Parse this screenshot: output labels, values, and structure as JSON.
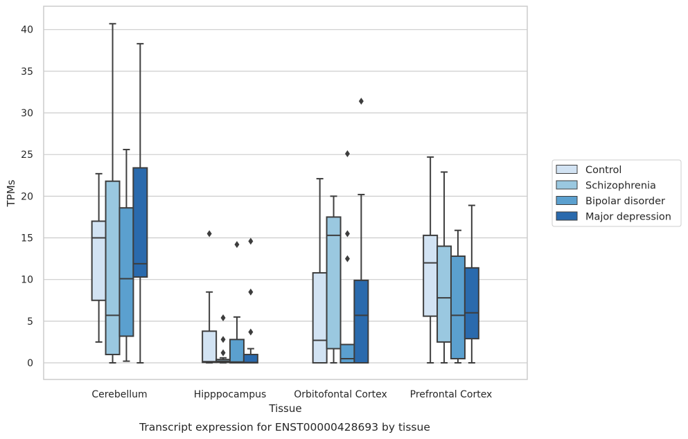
{
  "chart_data": {
    "type": "boxplot",
    "title": "",
    "caption": "Transcript expression for ENST00000428693 by tissue",
    "xlabel": "Tissue",
    "ylabel": "TPMs",
    "ylim": [
      -1.9,
      42.7
    ],
    "yticks": [
      0,
      5,
      10,
      15,
      20,
      25,
      30,
      35,
      40
    ],
    "grid": "horizontal",
    "legend_position": "right",
    "categories": [
      "Cerebellum",
      "Hipppocampus",
      "Orbitofontal Cortex",
      "Prefrontal Cortex"
    ],
    "series": [
      {
        "name": "Control",
        "color": "#d2e3f3",
        "boxes": [
          {
            "whislo": 2.5,
            "q1": 7.5,
            "med": 15.0,
            "q3": 17.0,
            "whishi": 22.7,
            "fliers": []
          },
          {
            "whislo": 0.0,
            "q1": 0.05,
            "med": 0.15,
            "q3": 3.8,
            "whishi": 8.5,
            "fliers": [
              15.5
            ]
          },
          {
            "whislo": 0.0,
            "q1": 0.0,
            "med": 2.7,
            "q3": 10.8,
            "whishi": 22.1,
            "fliers": []
          },
          {
            "whislo": 0.0,
            "q1": 5.6,
            "med": 12.0,
            "q3": 15.3,
            "whishi": 24.7,
            "fliers": []
          }
        ]
      },
      {
        "name": "Schizophrenia",
        "color": "#9ac8e0",
        "boxes": [
          {
            "whislo": 0.0,
            "q1": 1.0,
            "med": 5.7,
            "q3": 21.8,
            "whishi": 40.7,
            "fliers": []
          },
          {
            "whislo": 0.0,
            "q1": 0.05,
            "med": 0.2,
            "q3": 0.4,
            "whishi": 0.6,
            "fliers": [
              1.2,
              2.8,
              5.4
            ]
          },
          {
            "whislo": 0.0,
            "q1": 1.7,
            "med": 15.3,
            "q3": 17.5,
            "whishi": 20.0,
            "fliers": []
          },
          {
            "whislo": 0.0,
            "q1": 2.5,
            "med": 7.8,
            "q3": 14.0,
            "whishi": 22.9,
            "fliers": []
          }
        ]
      },
      {
        "name": "Bipolar disorder",
        "color": "#5ba0cf",
        "boxes": [
          {
            "whislo": 0.2,
            "q1": 3.2,
            "med": 10.1,
            "q3": 18.6,
            "whishi": 25.6,
            "fliers": []
          },
          {
            "whislo": 0.0,
            "q1": 0.0,
            "med": 0.1,
            "q3": 2.8,
            "whishi": 5.5,
            "fliers": [
              14.2
            ]
          },
          {
            "whislo": 0.0,
            "q1": 0.0,
            "med": 0.5,
            "q3": 2.2,
            "whishi": 2.2,
            "fliers": [
              12.5,
              15.5,
              25.1
            ]
          },
          {
            "whislo": 0.0,
            "q1": 0.5,
            "med": 5.7,
            "q3": 12.8,
            "whishi": 15.9,
            "fliers": []
          }
        ]
      },
      {
        "name": "Major depression",
        "color": "#2a6aad",
        "boxes": [
          {
            "whislo": 0.0,
            "q1": 10.3,
            "med": 11.9,
            "q3": 23.4,
            "whishi": 38.3,
            "fliers": []
          },
          {
            "whislo": 0.0,
            "q1": 0.0,
            "med": 0.05,
            "q3": 1.0,
            "whishi": 1.7,
            "fliers": [
              3.7,
              8.5,
              14.6
            ]
          },
          {
            "whislo": 0.0,
            "q1": 0.0,
            "med": 5.7,
            "q3": 9.9,
            "whishi": 20.2,
            "fliers": [
              31.4
            ]
          },
          {
            "whislo": 0.0,
            "q1": 2.9,
            "med": 6.0,
            "q3": 11.4,
            "whishi": 18.9,
            "fliers": []
          }
        ]
      }
    ]
  }
}
